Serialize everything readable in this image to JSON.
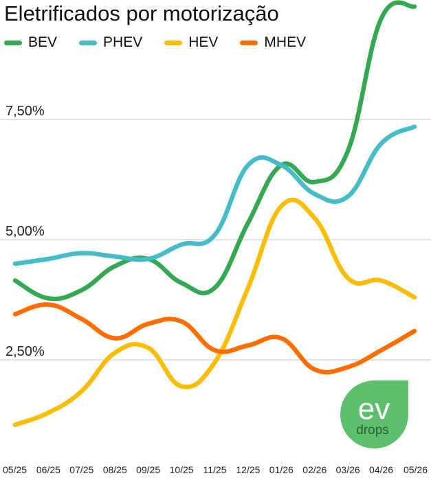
{
  "title": "Eletrificados por motorização",
  "logo": {
    "brand": "ev",
    "sub": "drops",
    "color": "#5cbf6b"
  },
  "chart_data": {
    "type": "line",
    "title": "Eletrificados por motorização",
    "xlabel": "",
    "ylabel": "",
    "categories": [
      "05/25",
      "06/25",
      "07/25",
      "08/25",
      "09/25",
      "10/25",
      "11/25",
      "12/25",
      "01/26",
      "02/26",
      "03/26",
      "04/26",
      "05/26"
    ],
    "y_ticks": [
      {
        "value": 2.5,
        "label": "2,50%"
      },
      {
        "value": 5.0,
        "label": "5,00%"
      },
      {
        "value": 7.5,
        "label": "7,50%"
      }
    ],
    "ylim": [
      0.8,
      10.0
    ],
    "grid": true,
    "legend_position": "top-left",
    "series": [
      {
        "name": "BEV",
        "color": "#34a853",
        "values": [
          4.15,
          3.78,
          3.95,
          4.45,
          4.6,
          4.1,
          4.0,
          5.35,
          6.55,
          6.2,
          6.85,
          9.6,
          9.85
        ]
      },
      {
        "name": "PHEV",
        "color": "#46bdc6",
        "values": [
          4.5,
          4.6,
          4.72,
          4.65,
          4.6,
          4.9,
          5.1,
          6.55,
          6.55,
          5.95,
          5.9,
          7.0,
          7.35
        ]
      },
      {
        "name": "HEV",
        "color": "#fbbc04",
        "values": [
          1.15,
          1.4,
          1.85,
          2.65,
          2.75,
          1.95,
          2.45,
          4.0,
          5.7,
          5.45,
          4.2,
          4.15,
          3.8
        ]
      },
      {
        "name": "MHEV",
        "color": "#ff6d01",
        "values": [
          3.45,
          3.65,
          3.35,
          2.95,
          3.25,
          3.3,
          2.7,
          2.8,
          2.95,
          2.3,
          2.35,
          2.7,
          3.1
        ]
      }
    ]
  }
}
